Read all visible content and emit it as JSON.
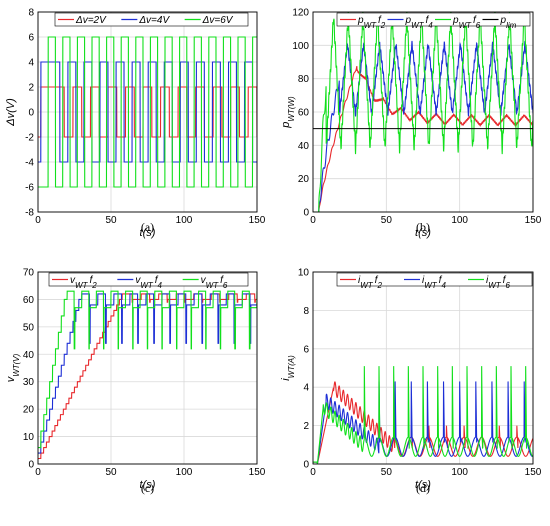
{
  "chart_data": [
    {
      "id": "a",
      "type": "line",
      "caption": "(a)",
      "xlabel": "t(s)",
      "ylabel": "Δv(V)",
      "xlim": [
        0,
        150
      ],
      "ylim": [
        -8,
        8
      ],
      "xticks": [
        0,
        50,
        100,
        150
      ],
      "yticks": [
        -8,
        -6,
        -4,
        -2,
        0,
        2,
        4,
        6,
        8
      ],
      "grid": true,
      "legend": "top",
      "series": [
        {
          "name": "Δv=2V",
          "color": "#e8282c",
          "kind": "square",
          "amplitude": 2,
          "period": 12,
          "start": 18
        },
        {
          "name": "Δv=4V",
          "color": "#1d2fd6",
          "kind": "square",
          "amplitude": 4,
          "period": 11,
          "start": 15
        },
        {
          "name": "Δv=6V",
          "color": "#11e01b",
          "kind": "square",
          "amplitude": 6,
          "period": 10,
          "start": 2
        }
      ]
    },
    {
      "id": "b",
      "type": "line",
      "caption": "(b)",
      "xlabel": "t(s)",
      "ylabel": "p_WT(W)",
      "xlim": [
        0,
        150
      ],
      "ylim": [
        0,
        120
      ],
      "xticks": [
        0,
        50,
        100,
        150
      ],
      "yticks": [
        0,
        20,
        40,
        60,
        80,
        100,
        120
      ],
      "grid": true,
      "legend": "top",
      "series": [
        {
          "name": "p_WT f_2",
          "color": "#e8282c",
          "kind": "power",
          "rise_end": 30,
          "peak": 88,
          "mean": 55,
          "osc": 6,
          "period": 12
        },
        {
          "name": "p_WT f_4",
          "color": "#1d2fd6",
          "kind": "power",
          "rise_end": 18,
          "peak": 80,
          "mean": 55,
          "osc": 22,
          "period": 11
        },
        {
          "name": "p_WT f_6",
          "color": "#11e01b",
          "kind": "power",
          "rise_end": 9,
          "peak": 78,
          "mean": 55,
          "osc": 42,
          "period": 10
        },
        {
          "name": "p_lim",
          "color": "#000000",
          "kind": "const",
          "value": 50
        }
      ]
    },
    {
      "id": "c",
      "type": "line",
      "caption": "(c)",
      "xlabel": "t(s)",
      "ylabel": "v_WT(V)",
      "xlim": [
        0,
        150
      ],
      "ylim": [
        0,
        70
      ],
      "xticks": [
        0,
        50,
        100,
        150
      ],
      "yticks": [
        0,
        10,
        20,
        30,
        40,
        50,
        60,
        70
      ],
      "grid": true,
      "legend": "top",
      "series": [
        {
          "name": "v_WT f_2",
          "color": "#e8282c",
          "kind": "stair",
          "step": 2,
          "steps_per_s": 0.52,
          "final": 61,
          "period": 12,
          "dip": 2
        },
        {
          "name": "v_WT f_4",
          "color": "#1d2fd6",
          "kind": "stair",
          "step": 4,
          "steps_per_s": 0.5,
          "final": 60,
          "period": 11,
          "dip": 16
        },
        {
          "name": "v_WT f_6",
          "color": "#11e01b",
          "kind": "stair",
          "step": 6,
          "steps_per_s": 0.5,
          "final": 60,
          "period": 10,
          "dip": 18
        }
      ]
    },
    {
      "id": "d",
      "type": "line",
      "caption": "(d)",
      "xlabel": "t(s)",
      "ylabel": "i_WT(A)",
      "xlim": [
        0,
        150
      ],
      "ylim": [
        0,
        10
      ],
      "xticks": [
        0,
        50,
        100,
        150
      ],
      "yticks": [
        0,
        2,
        4,
        6,
        8,
        10
      ],
      "grid": true,
      "legend": "top",
      "series": [
        {
          "name": "i_WT f_2",
          "color": "#e8282c",
          "kind": "current",
          "peak": 4,
          "peak_t": 14,
          "decay_end": 55,
          "spike": 1.2,
          "period": 12
        },
        {
          "name": "i_WT f_4",
          "color": "#1d2fd6",
          "kind": "current",
          "peak": 3.3,
          "peak_t": 9,
          "decay_end": 45,
          "spike": 3.5,
          "period": 11
        },
        {
          "name": "i_WT f_6",
          "color": "#11e01b",
          "kind": "current",
          "peak": 3,
          "peak_t": 7,
          "decay_end": 35,
          "spike": 4.3,
          "period": 10
        }
      ]
    }
  ]
}
